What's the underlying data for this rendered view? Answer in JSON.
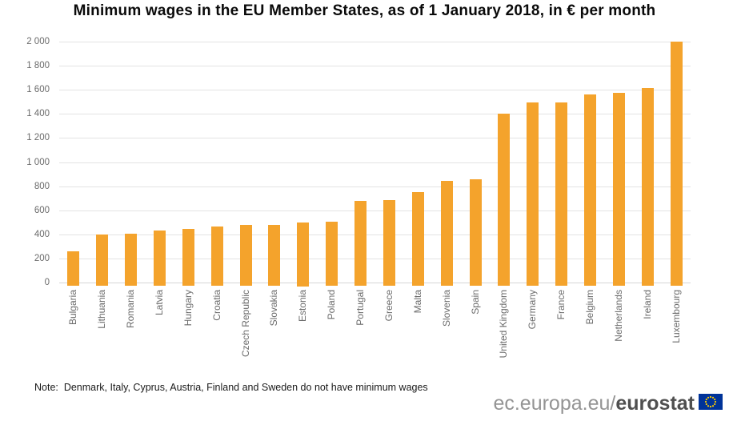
{
  "title": "Minimum wages in the EU Member States, as of 1 January 2018, in € per month",
  "note": "Note:  Denmark, Italy, Cyprus, Austria, Finland and Sweden do not have minimum wages",
  "footer": {
    "url_prefix": "ec.europa.eu/",
    "url_bold": "eurostat",
    "flag_icon": "eu-flag-icon"
  },
  "colors": {
    "bar": "#F4A32C",
    "grid": "#E3E3E3",
    "axis_line": "#D5D5D5",
    "axis_text": "#6B6B6B",
    "title_text": "#0A0A0A",
    "note_text": "#1A1A1A",
    "footer_gray": "#949494",
    "footer_dark": "#4F4F4F",
    "flag_blue": "#003399",
    "flag_stars": "#FFCC00"
  },
  "chart_data": {
    "type": "bar",
    "title": "Minimum wages in the EU Member States, as of 1 January 2018, in € per month",
    "xlabel": "",
    "ylabel": "€ per month",
    "categories": [
      "Bulgaria",
      "Lithuania",
      "Romania",
      "Latvia",
      "Hungary",
      "Croatia",
      "Czech Republic",
      "Slovakia",
      "Estonia",
      "Poland",
      "Portugal",
      "Greece",
      "Malta",
      "Slovenia",
      "Spain",
      "United Kingdom",
      "Germany",
      "France",
      "Belgium",
      "Netherlands",
      "Ireland",
      "Luxembourg"
    ],
    "values": [
      261,
      400,
      408,
      430,
      445,
      462,
      478,
      480,
      500,
      503,
      677,
      684,
      748,
      843,
      859,
      1401,
      1498,
      1498,
      1563,
      1578,
      1614,
      1999
    ],
    "ylim": [
      0,
      2000
    ],
    "ytick_step": 200,
    "ytick_labels": [
      "0",
      "200",
      "400",
      "600",
      "800",
      "1 000",
      "1 200",
      "1 400",
      "1 600",
      "1 800",
      "2 000"
    ],
    "grid": "horizontal",
    "legend": false
  }
}
